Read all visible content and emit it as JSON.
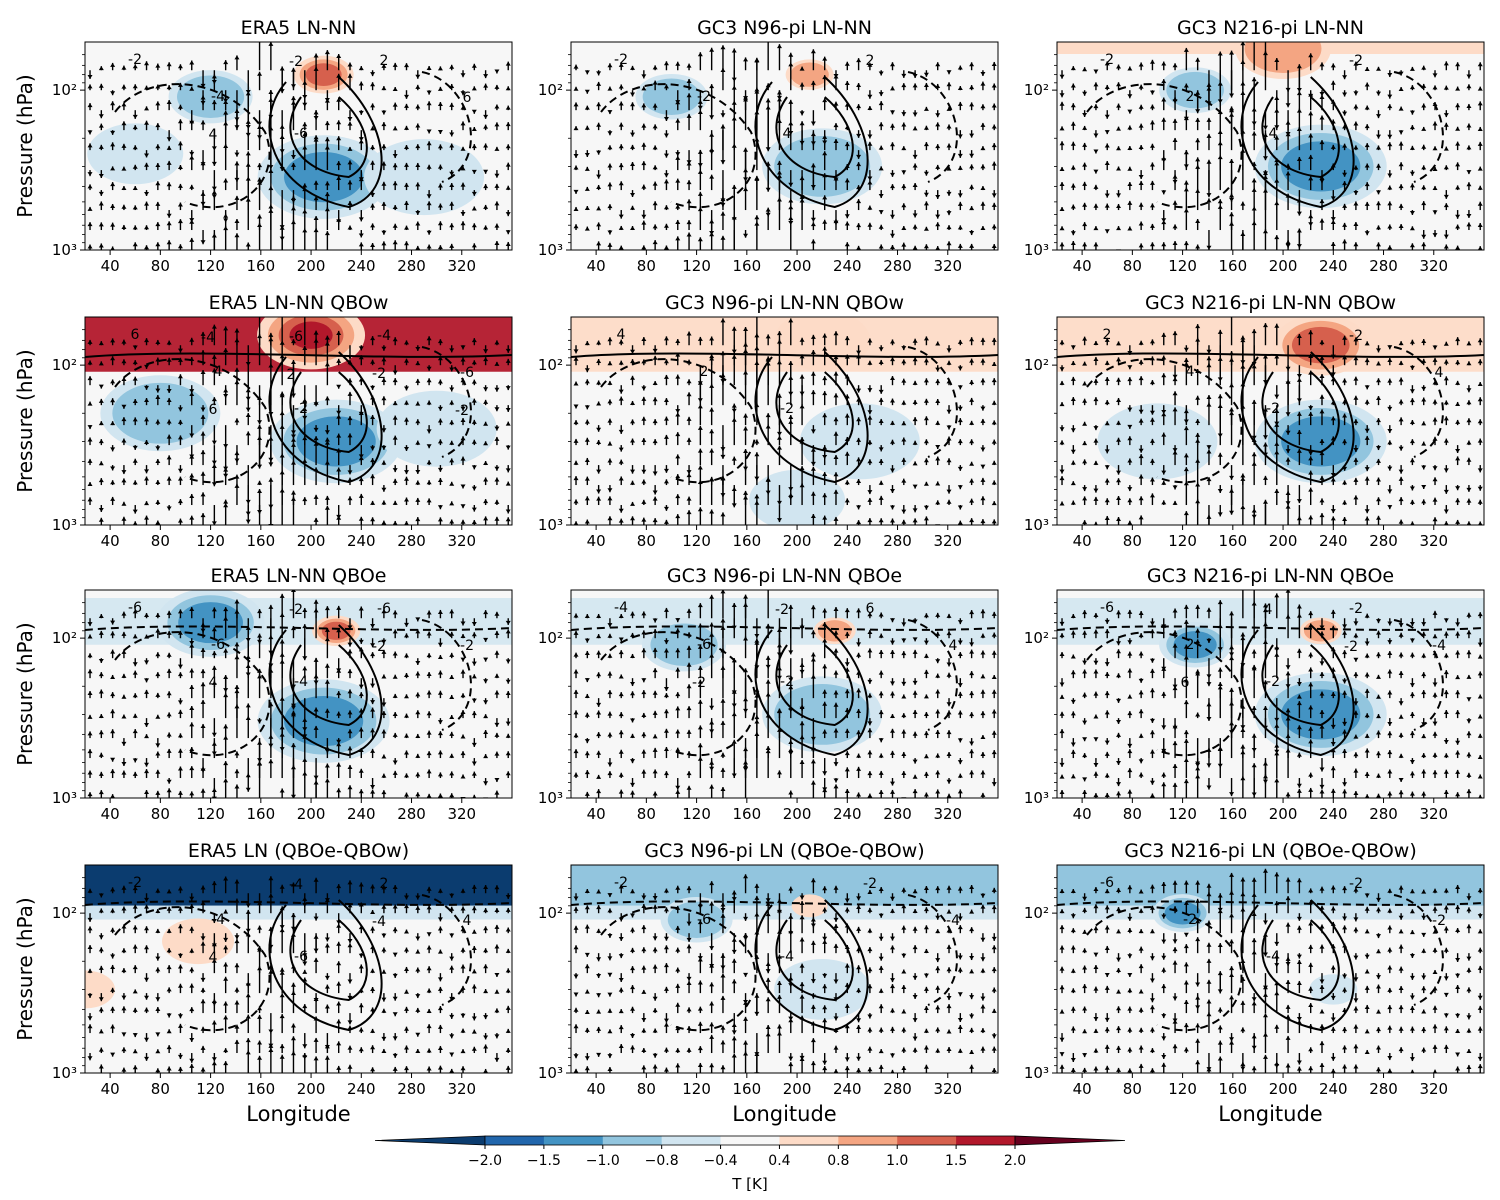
{
  "figure": {
    "xlabel": "Longitude",
    "ylabel": "Pressure (hPa)",
    "colorbar_label": "T [K]"
  },
  "chart_data": {
    "type": "heatmap",
    "x_ticks": [
      "40",
      "80",
      "120",
      "160",
      "200",
      "240",
      "280",
      "320"
    ],
    "x_tick_values": [
      40,
      80,
      120,
      160,
      200,
      240,
      280,
      320
    ],
    "xlim": [
      20,
      360
    ],
    "y_scale": "log",
    "y_ticks": [
      "10²",
      "10³"
    ],
    "ylim_hPa": [
      1000,
      50
    ],
    "colorbar": {
      "levels": [
        -2.0,
        -1.5,
        -1.0,
        -0.8,
        -0.4,
        0.4,
        0.8,
        1.0,
        1.5,
        2.0
      ],
      "tick_labels": [
        "−2.0",
        "−1.5",
        "−1.0",
        "−0.8",
        "−0.4",
        "0.4",
        "0.8",
        "1.0",
        "1.5",
        "2.0"
      ],
      "colors": [
        "#0b3c6f",
        "#2166ac",
        "#4393c3",
        "#92c5de",
        "#d1e5f0",
        "#f7f7f7",
        "#fddbc7",
        "#f4a582",
        "#d6604d",
        "#b2182b",
        "#67001f"
      ],
      "extend": "both"
    },
    "panels": [
      {
        "title": "ERA5 LN-NN",
        "row": 0,
        "col": 0,
        "contour_labels": [
          "-2",
          "-4",
          "-6",
          "2",
          "6",
          "4",
          "-2"
        ],
        "blobs": [
          {
            "lon": 210,
            "p": 350,
            "v": -1.6,
            "r": 1.1
          },
          {
            "lon": 120,
            "p": 110,
            "v": -1.0,
            "r": 0.7
          },
          {
            "lon": 290,
            "p": 350,
            "v": -0.7,
            "r": 1.0
          },
          {
            "lon": 60,
            "p": 250,
            "v": -0.6,
            "r": 0.8
          },
          {
            "lon": 210,
            "p": 80,
            "v": 1.6,
            "r": 0.5
          }
        ]
      },
      {
        "title": "GC3 N96-pi LN-NN",
        "row": 0,
        "col": 1,
        "contour_labels": [
          "-2",
          "-2",
          "4",
          "2"
        ],
        "blobs": [
          {
            "lon": 220,
            "p": 300,
            "v": -1.0,
            "r": 1.0
          },
          {
            "lon": 100,
            "p": 110,
            "v": -0.9,
            "r": 0.6
          },
          {
            "lon": 210,
            "p": 80,
            "v": 0.9,
            "r": 0.4
          }
        ]
      },
      {
        "title": "GC3 N216-pi LN-NN",
        "row": 0,
        "col": 2,
        "contour_labels": [
          "-2",
          "2",
          "4",
          "-2"
        ],
        "blobs": [
          {
            "lon": 230,
            "p": 300,
            "v": -1.3,
            "r": 1.1
          },
          {
            "lon": 130,
            "p": 100,
            "v": -1.1,
            "r": 0.6
          },
          {
            "lon": 200,
            "p": 55,
            "v": 1.0,
            "r": 0.8
          }
        ]
      },
      {
        "title": "ERA5 LN-NN QBOw",
        "row": 1,
        "col": 0,
        "contour_labels": [
          "6",
          "4",
          "-2",
          "-4",
          "-6",
          "6",
          "-6",
          "-2",
          "-2",
          "-4",
          "2"
        ],
        "blobs": [
          {
            "lon": 220,
            "p": 300,
            "v": -1.6,
            "r": 1.1
          },
          {
            "lon": 80,
            "p": 200,
            "v": -1.0,
            "r": 1.0
          },
          {
            "lon": 200,
            "p": 65,
            "v": 2.0,
            "r": 0.9
          },
          {
            "lon": 300,
            "p": 250,
            "v": -0.8,
            "r": 1.0
          }
        ]
      },
      {
        "title": "GC3 N96-pi LN-NN QBOw",
        "row": 1,
        "col": 1,
        "contour_labels": [
          "4",
          "2",
          "-2"
        ],
        "blobs": [
          {
            "lon": 250,
            "p": 300,
            "v": -0.7,
            "r": 1.0
          },
          {
            "lon": 220,
            "p": 70,
            "v": 0.8,
            "r": 0.8
          },
          {
            "lon": 200,
            "p": 700,
            "v": -0.6,
            "r": 0.8
          }
        ]
      },
      {
        "title": "GC3 N216-pi LN-NN QBOw",
        "row": 1,
        "col": 2,
        "contour_labels": [
          "2",
          "4",
          "-2",
          "-2",
          "4"
        ],
        "blobs": [
          {
            "lon": 230,
            "p": 300,
            "v": -1.2,
            "r": 1.1
          },
          {
            "lon": 100,
            "p": 300,
            "v": -0.8,
            "r": 1.0
          },
          {
            "lon": 230,
            "p": 75,
            "v": 1.2,
            "r": 0.8
          }
        ]
      },
      {
        "title": "ERA5 LN-NN QBOe",
        "row": 2,
        "col": 0,
        "contour_labels": [
          "-6",
          "-6",
          "-4",
          "-6",
          "-2",
          "4",
          "-2",
          "-2"
        ],
        "blobs": [
          {
            "lon": 210,
            "p": 330,
            "v": -1.5,
            "r": 1.1
          },
          {
            "lon": 120,
            "p": 80,
            "v": -1.6,
            "r": 0.9
          },
          {
            "lon": 220,
            "p": 90,
            "v": 1.4,
            "r": 0.4
          }
        ]
      },
      {
        "title": "GC3 N96-pi LN-NN QBOe",
        "row": 2,
        "col": 1,
        "contour_labels": [
          "-4",
          "-6",
          "-2",
          "6",
          "4",
          "-2",
          "-2"
        ],
        "blobs": [
          {
            "lon": 220,
            "p": 300,
            "v": -1.1,
            "r": 1.0
          },
          {
            "lon": 110,
            "p": 110,
            "v": -1.0,
            "r": 0.7
          },
          {
            "lon": 230,
            "p": 90,
            "v": 0.9,
            "r": 0.35
          }
        ]
      },
      {
        "title": "GC3 N216-pi LN-NN QBOe",
        "row": 2,
        "col": 2,
        "contour_labels": [
          "-6",
          "2",
          "-2",
          "-2",
          "-4",
          "6",
          "4",
          "-2"
        ],
        "blobs": [
          {
            "lon": 230,
            "p": 300,
            "v": -1.3,
            "r": 1.1
          },
          {
            "lon": 130,
            "p": 110,
            "v": -1.2,
            "r": 0.6
          },
          {
            "lon": 230,
            "p": 90,
            "v": 1.0,
            "r": 0.35
          }
        ]
      },
      {
        "title": "ERA5 LN (QBOe-QBOw)",
        "row": 3,
        "col": 0,
        "contour_labels": [
          "-2",
          "-4",
          "-6",
          "2",
          "4",
          "4",
          "-4",
          "-4"
        ],
        "blobs": [
          {
            "lon": 110,
            "p": 150,
            "v": 0.8,
            "r": 0.6
          },
          {
            "lon": 20,
            "p": 300,
            "v": 0.7,
            "r": 0.5
          }
        ]
      },
      {
        "title": "GC3 N96-pi LN (QBOe-QBOw)",
        "row": 3,
        "col": 1,
        "contour_labels": [
          "-2",
          "-6",
          "-4",
          "-2",
          "-4"
        ],
        "blobs": [
          {
            "lon": 220,
            "p": 300,
            "v": -0.7,
            "r": 0.8
          },
          {
            "lon": 120,
            "p": 110,
            "v": -0.9,
            "r": 0.6
          },
          {
            "lon": 210,
            "p": 90,
            "v": 0.6,
            "r": 0.3
          }
        ]
      },
      {
        "title": "GC3 N216-pi LN (QBOe-QBOw)",
        "row": 3,
        "col": 2,
        "contour_labels": [
          "-6",
          "-2",
          "-4",
          "-2",
          "-2"
        ],
        "blobs": [
          {
            "lon": 120,
            "p": 100,
            "v": -1.2,
            "r": 0.5
          },
          {
            "lon": 240,
            "p": 300,
            "v": -0.5,
            "r": 0.4
          }
        ]
      }
    ]
  }
}
